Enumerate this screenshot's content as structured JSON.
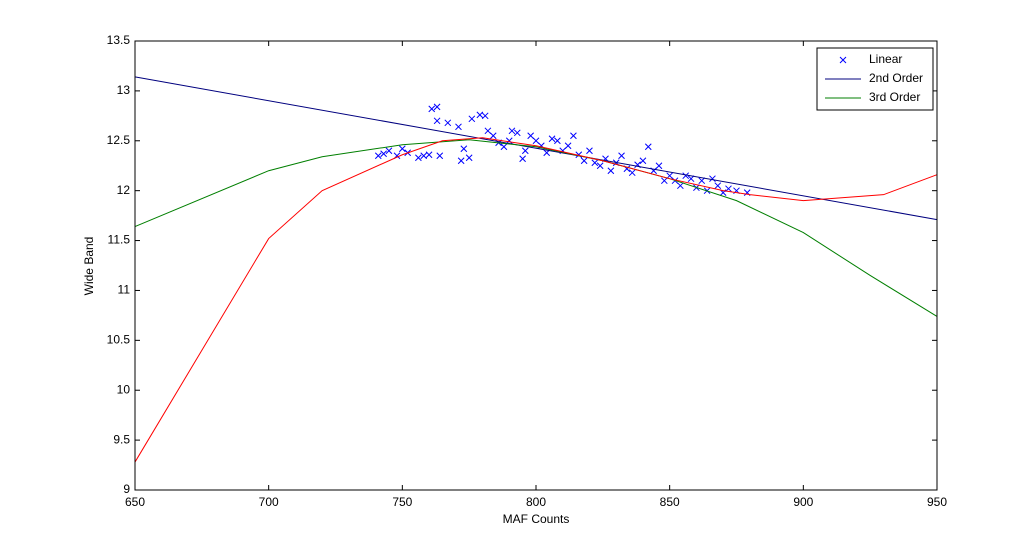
{
  "chart_data": {
    "type": "line",
    "xlabel": "MAF Counts",
    "ylabel": "Wide Band",
    "xlim": [
      650,
      950
    ],
    "xticks": [
      650,
      700,
      750,
      800,
      850,
      900,
      950
    ],
    "ylim": [
      9,
      13.5
    ],
    "yticks": [
      9,
      9.5,
      10,
      10.5,
      11,
      11.5,
      12,
      12.5,
      13,
      13.5
    ],
    "legend": "top-right",
    "series": [
      {
        "name": "Linear",
        "type": "scatter",
        "color": "#0000ff",
        "x": [
          741,
          743,
          745,
          748,
          750,
          752,
          756,
          758,
          760,
          761,
          763,
          763,
          764,
          767,
          771,
          772,
          773,
          775,
          776,
          779,
          781,
          782,
          784,
          786,
          788,
          790,
          791,
          793,
          795,
          796,
          798,
          800,
          802,
          804,
          806,
          808,
          810,
          812,
          814,
          816,
          818,
          820,
          822,
          824,
          826,
          828,
          830,
          832,
          834,
          836,
          838,
          840,
          842,
          844,
          846,
          848,
          850,
          852,
          854,
          856,
          858,
          860,
          862,
          864,
          866,
          868,
          870,
          872,
          875,
          879
        ],
        "values": [
          12.35,
          12.37,
          12.4,
          12.35,
          12.42,
          12.38,
          12.33,
          12.35,
          12.36,
          12.82,
          12.84,
          12.7,
          12.35,
          12.68,
          12.64,
          12.3,
          12.42,
          12.33,
          12.72,
          12.76,
          12.75,
          12.6,
          12.55,
          12.48,
          12.44,
          12.5,
          12.6,
          12.58,
          12.32,
          12.4,
          12.55,
          12.5,
          12.45,
          12.38,
          12.52,
          12.5,
          12.4,
          12.45,
          12.55,
          12.36,
          12.3,
          12.4,
          12.28,
          12.25,
          12.32,
          12.2,
          12.28,
          12.35,
          12.22,
          12.18,
          12.26,
          12.3,
          12.44,
          12.2,
          12.25,
          12.1,
          12.15,
          12.1,
          12.05,
          12.15,
          12.12,
          12.03,
          12.1,
          12.0,
          12.12,
          12.05,
          11.98,
          12.02,
          12.0,
          11.98
        ]
      },
      {
        "name": "2nd Order",
        "type": "line",
        "color": "#00007f",
        "x": [
          650,
          950
        ],
        "values": [
          13.14,
          11.71
        ]
      },
      {
        "name": "3rd Order",
        "type": "line",
        "color": "#007f00",
        "x": [
          650,
          700,
          720,
          750,
          775,
          800,
          825,
          850,
          875,
          900,
          925,
          950
        ],
        "values": [
          11.64,
          12.2,
          12.34,
          12.46,
          12.51,
          12.44,
          12.3,
          12.12,
          11.9,
          11.58,
          11.15,
          10.74
        ]
      },
      {
        "type": "line",
        "color": "#ff0000",
        "x": [
          650,
          700,
          720,
          750,
          765,
          780,
          800,
          825,
          850,
          870,
          880,
          900,
          930,
          950
        ],
        "values": [
          9.28,
          11.52,
          12.0,
          12.36,
          12.5,
          12.53,
          12.45,
          12.3,
          12.12,
          12.0,
          11.96,
          11.9,
          11.96,
          12.16
        ]
      }
    ]
  }
}
